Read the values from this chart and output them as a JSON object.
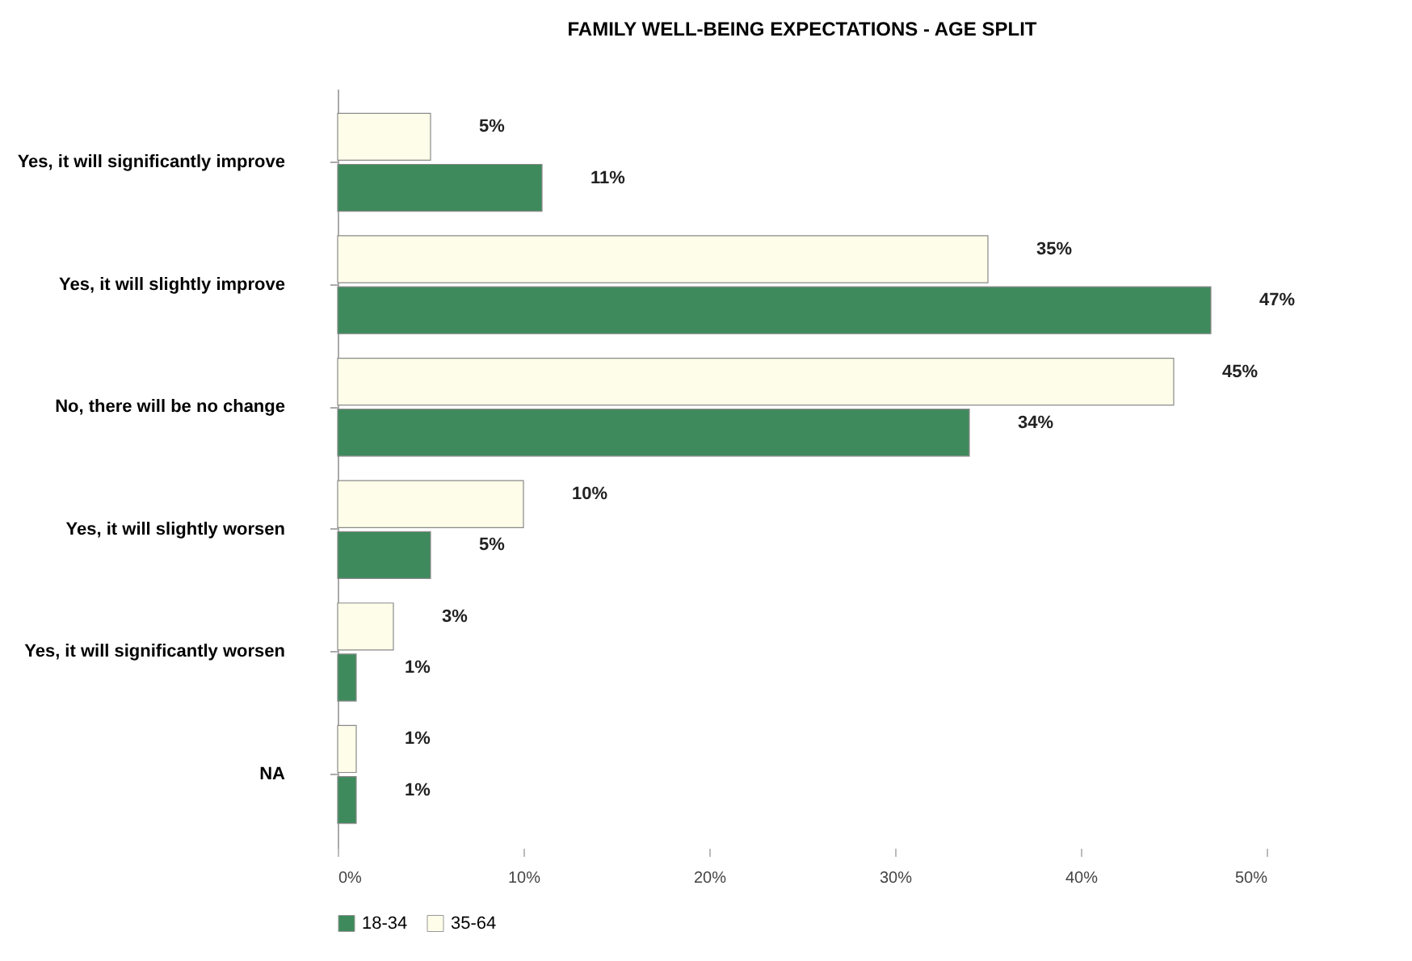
{
  "chart_data": {
    "type": "bar",
    "orientation": "horizontal",
    "title": "FAMILY WELL-BEING EXPECTATIONS - AGE SPLIT",
    "categories": [
      "Yes, it will significantly improve",
      "Yes, it will slightly improve",
      "No, there will be no change",
      "Yes, it will slightly worsen",
      "Yes, it will significantly worsen",
      "NA"
    ],
    "series": [
      {
        "name": "18-34",
        "color": "#3e8a5c",
        "values": [
          11,
          47,
          34,
          5,
          1,
          1
        ],
        "value_labels": [
          "11%",
          "47%",
          "34%",
          "5%",
          "1%",
          "1%"
        ]
      },
      {
        "name": "35-64",
        "color": "#fdfde9",
        "values": [
          5,
          35,
          45,
          10,
          3,
          1
        ],
        "value_labels": [
          "5%",
          "35%",
          "45%",
          "10%",
          "3%",
          "1%"
        ]
      }
    ],
    "xlim": [
      0,
      50
    ],
    "xticks": [
      {
        "value": 0,
        "label": "0%"
      },
      {
        "value": 10,
        "label": "10%"
      },
      {
        "value": 20,
        "label": "20%"
      },
      {
        "value": 30,
        "label": "30%"
      },
      {
        "value": 40,
        "label": "40%"
      },
      {
        "value": 50,
        "label": "50%"
      }
    ],
    "legend": "bottom"
  }
}
